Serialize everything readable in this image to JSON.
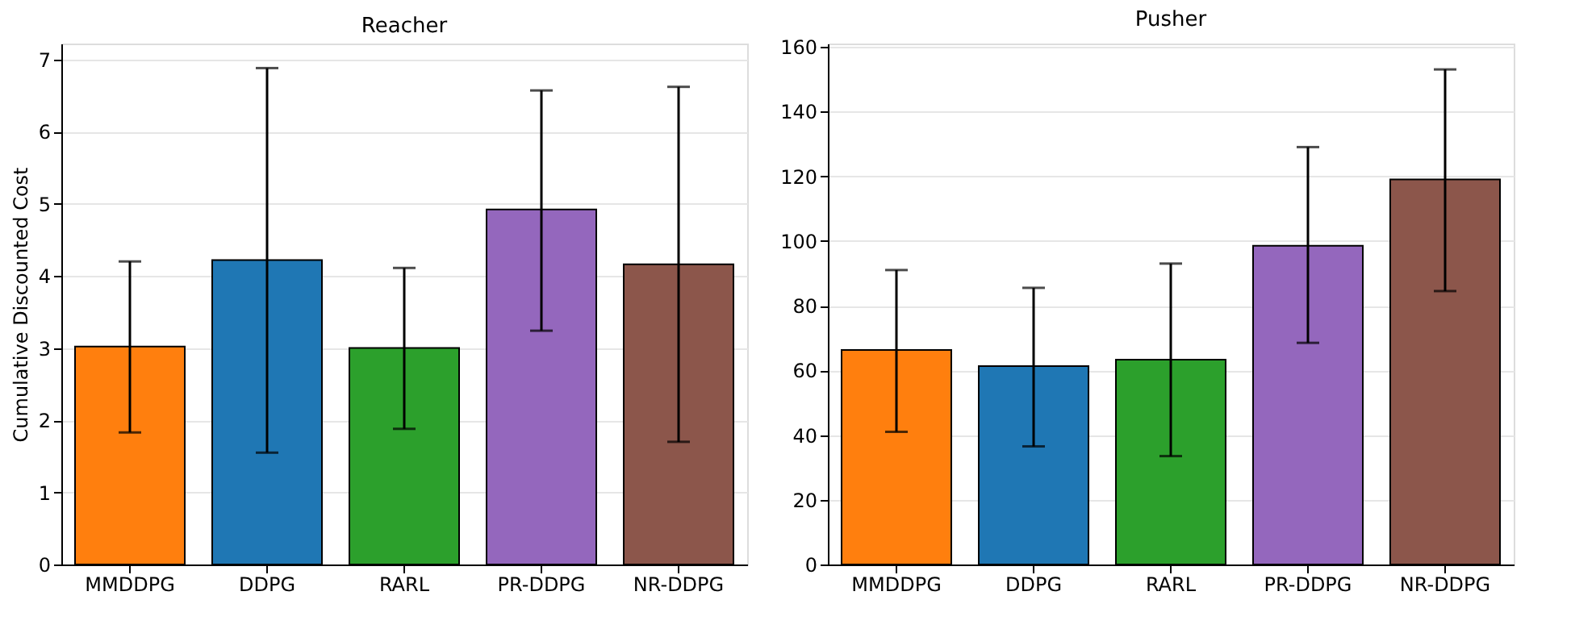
{
  "chart_data": [
    {
      "type": "bar",
      "title": "Reacher",
      "ylabel": "Cumulative Discounted Cost",
      "categories": [
        "MMDDPG",
        "DDPG",
        "RARL",
        "PR-DDPG",
        "NR-DDPG"
      ],
      "values": [
        3.02,
        4.22,
        3.0,
        4.92,
        4.16
      ],
      "colors": [
        "#ff7f0e",
        "#1f77b4",
        "#2ca02c",
        "#9467bd",
        "#8c564b"
      ],
      "errors": [
        [
          1.83,
          4.2
        ],
        [
          1.55,
          6.88
        ],
        [
          1.88,
          4.11
        ],
        [
          3.24,
          6.57
        ],
        [
          1.7,
          6.62
        ]
      ],
      "ylim": [
        0,
        7.22
      ],
      "yticks": [
        0,
        1,
        2,
        3,
        4,
        5,
        6,
        7
      ],
      "grid": "y"
    },
    {
      "type": "bar",
      "title": "Pusher",
      "categories": [
        "MMDDPG",
        "DDPG",
        "RARL",
        "PR-DDPG",
        "NR-DDPG"
      ],
      "values": [
        66.3,
        61.3,
        63.3,
        98.5,
        119
      ],
      "colors": [
        "#ff7f0e",
        "#1f77b4",
        "#2ca02c",
        "#9467bd",
        "#8c564b"
      ],
      "errors": [
        [
          41,
          91
        ],
        [
          36.5,
          85.5
        ],
        [
          33.5,
          93
        ],
        [
          68.5,
          129
        ],
        [
          84.5,
          153
        ]
      ],
      "ylim": [
        0,
        161
      ],
      "yticks": [
        0,
        20,
        40,
        60,
        80,
        100,
        120,
        140,
        160
      ],
      "grid": "y"
    }
  ]
}
